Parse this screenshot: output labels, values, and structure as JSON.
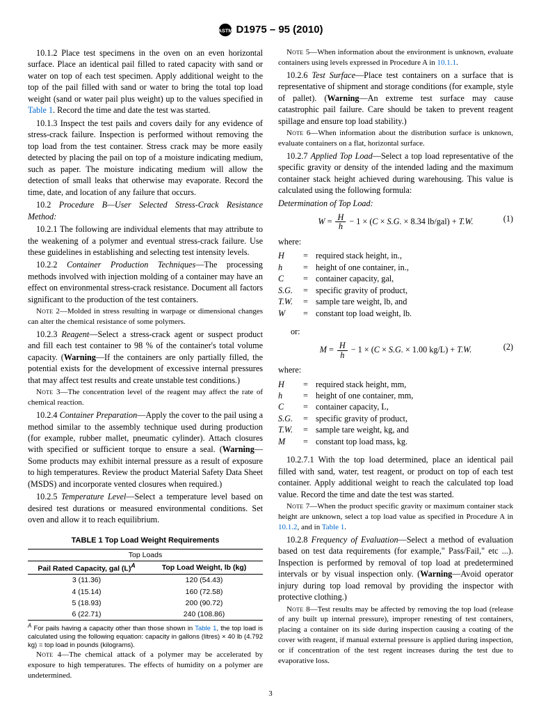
{
  "header": {
    "standard": "D1975 – 95 (2010)"
  },
  "paragraphs": {
    "p10_1_2": "10.1.2 Place test specimens in the oven on an even horizontal surface. Place an identical pail filled to rated capacity with sand or water on top of each test specimen. Apply additional weight to the top of the pail filled with sand or water to bring the total top load weight (sand or water pail plus weight) up to the values specified in ",
    "p10_1_2_link": "Table 1",
    "p10_1_2_tail": ". Record the time and date the test was started.",
    "p10_1_3": "10.1.3 Inspect the test pails and covers daily for any evidence of stress-crack failure. Inspection is performed without removing the top load from the test container. Stress crack may be more easily detected by placing the pail on top of a moisture indicating medium, such as paper. The moisture indicating medium will allow the detection of small leaks that otherwise may evaporate. Record the time, date, and location of any failure that occurs.",
    "p10_2_head": "10.2 ",
    "p10_2_title": "Procedure B—User Selected Stress-Crack Resistance Method:",
    "p10_2_1": "10.2.1 The following are individual elements that may attribute to the weakening of a polymer and eventual stress-crack failure. Use these guidelines in establishing and selecting test intensity levels.",
    "p10_2_2_head": "10.2.2 ",
    "p10_2_2_title": "Container Production Techniques",
    "p10_2_2_body": "—The processing methods involved with injection molding of a container may have an effect on environmental stress-crack resistance. Document all factors significant to the production of the test containers.",
    "note2": "2—Molded in stress resulting in warpage or dimensional changes can alter the chemical resistance of some polymers.",
    "p10_2_3_head": "10.2.3 ",
    "p10_2_3_title": "Reagent",
    "p10_2_3_body": "—Select a stress-crack agent or suspect product and fill each test container to 98 % of the container's total volume capacity. (",
    "p10_2_3_warn": "Warning",
    "p10_2_3_tail": "—If the containers are only partially filled, the potential exists for the development of excessive internal pressures that may affect test results and create unstable test conditions.)",
    "note3": "3—The concentration level of the reagent may affect the rate of chemical reaction.",
    "p10_2_4_head": "10.2.4 ",
    "p10_2_4_title": "Container Preparation",
    "p10_2_4_body": "—Apply the cover to the pail using a method similar to the assembly technique used during production (for example, rubber mallet, pneumatic cylinder). Attach closures with specified or sufficient torque to ensure a seal. (",
    "p10_2_4_warn": "Warning",
    "p10_2_4_tail": "—Some products may exhibit internal pressure as a result of exposure to high temperatures. Review the product Material Safety Data Sheet (MSDS) and incorporate vented closures when required.)",
    "p10_2_5_head": "10.2.5 ",
    "p10_2_5_title": "Temperature Level",
    "p10_2_5_body": "—Select a temperature level based on desired test durations or measured environmental conditions. Set oven and allow it to reach equilibrium.",
    "note4": "4—The chemical attack of a polymer may be accelerated by exposure to high temperatures. The effects of humidity on a polymer are undetermined.",
    "note5_a": "5—When information about the environment is unknown, evaluate containers using levels expressed in Procedure A in ",
    "note5_link": "10.1.1",
    "note5_b": ".",
    "p10_2_6_head": "10.2.6 ",
    "p10_2_6_title": "Test Surface",
    "p10_2_6_body": "—Place test containers on a surface that is representative of shipment and storage conditions (for example, style of pallet). (",
    "p10_2_6_warn": "Warning",
    "p10_2_6_tail": "—An extreme test surface may cause catastrophic pail failure. Care should be taken to prevent reagent spillage and ensure top load stability.)",
    "note6": "6—When information about the distribution surface is unknown, evaluate containers on a flat, horizontal surface.",
    "p10_2_7_head": "10.2.7 ",
    "p10_2_7_title": "Applied Top Load",
    "p10_2_7_body": "—Select a top load representative of the specific gravity or density of the intended lading and the maximum container stack height achieved during warehousing. This value is calculated using the following formula:",
    "det_head": "Determination of Top Load:",
    "where": "where:",
    "or": "or:",
    "eq1_num": "(1)",
    "eq2_num": "(2)",
    "defs1": [
      {
        "sym": "H",
        "def": "required stack height, in.,"
      },
      {
        "sym": "h",
        "def": "height of one container, in.,"
      },
      {
        "sym": "C",
        "def": "container capacity, gal,"
      },
      {
        "sym": "S.G.",
        "def": "specific gravity of product,"
      },
      {
        "sym": "T.W.",
        "def": "sample tare weight, lb, and"
      },
      {
        "sym": "W",
        "def": "constant top load weight, lb."
      }
    ],
    "defs2": [
      {
        "sym": "H",
        "def": "required stack height, mm,"
      },
      {
        "sym": "h",
        "def": "height of one container, mm,"
      },
      {
        "sym": "C",
        "def": "container capacity, L,"
      },
      {
        "sym": "S.G.",
        "def": "specific gravity of product,"
      },
      {
        "sym": "T.W.",
        "def": "sample tare weight, kg, and"
      },
      {
        "sym": "M",
        "def": "constant top load mass, kg."
      }
    ],
    "p10_2_7_1": "10.2.7.1 With the top load determined, place an identical pail filled with sand, water, test reagent, or product on top of each test container. Apply additional weight to reach the calculated top load value. Record the time and date the test was started.",
    "note7_a": "7—When the product specific gravity or maximum container stack height are unknown, select a top load value as specified in Procedure A in ",
    "note7_link1": "10.1.2",
    "note7_mid": ", and in ",
    "note7_link2": "Table 1",
    "note7_b": ".",
    "p10_2_8_head": "10.2.8 ",
    "p10_2_8_title": "Frequency of Evaluation",
    "p10_2_8_body": "—Select a method of evaluation based on test data requirements (for example,\" Pass/Fail,\" etc ...). Inspection is performed by removal of top load at predetermined intervals or by visual inspection only. (",
    "p10_2_8_warn": "Warning",
    "p10_2_8_tail": "—Avoid operator injury during top load removal by providing the inspector with protective clothing.)",
    "note8": "8—Test results may be affected by removing the top load (release of any built up internal pressure), improper renesting of test containers, placing a container on its side during inspection causing a coating of the cover with reagent, if manual external pressure is applied during inspection, or if concentration of the test regent increases during the test due to evaporative loss."
  },
  "table": {
    "title": "TABLE 1 Top Load Weight Requirements",
    "spanner": "Top Loads",
    "col1": "Pail Rated Capacity, gal (L)",
    "col1_sup": "A",
    "col2": "Top Load Weight, lb (kg)",
    "rows": [
      {
        "cap": "3 (11.36)",
        "load": "120 (54.43)"
      },
      {
        "cap": "4 (15.14)",
        "load": "160 (72.58)"
      },
      {
        "cap": "5 (18.93)",
        "load": "200 (90.72)"
      },
      {
        "cap": "6 (22.71)",
        "load": "240 (108.86)"
      }
    ],
    "footnote_sup": "A",
    "footnote_a": " For pails having a capacity other than those shown in ",
    "footnote_link": "Table 1",
    "footnote_b": ", the top load is calculated using the following equation: capacity in gallons (litres) × 40 lb (4.792 kg) = top load in pounds (kilograms)."
  },
  "pagenum": "3"
}
